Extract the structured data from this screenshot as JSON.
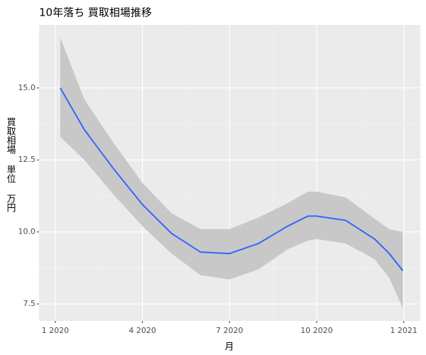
{
  "chart_data": {
    "type": "line",
    "title": "10年落ち 買取相場推移",
    "x_label": "月",
    "y_label": "買取相場 単位 万円",
    "x": [
      0.17,
      1,
      2,
      3,
      4,
      5,
      6,
      7,
      8,
      8.7,
      9,
      10,
      11,
      11.5,
      11.97
    ],
    "values": [
      15.0,
      13.55,
      12.2,
      10.95,
      9.95,
      9.3,
      9.25,
      9.6,
      10.2,
      10.55,
      10.55,
      10.4,
      9.75,
      9.25,
      8.65
    ],
    "lower": [
      13.3,
      12.5,
      11.3,
      10.2,
      9.25,
      8.5,
      8.35,
      8.7,
      9.4,
      9.7,
      9.75,
      9.6,
      9.05,
      8.4,
      7.35
    ],
    "upper": [
      16.75,
      14.6,
      13.1,
      11.7,
      10.65,
      10.1,
      10.1,
      10.5,
      11.0,
      11.4,
      11.4,
      11.2,
      10.45,
      10.1,
      10.0
    ],
    "color": "#3366ff",
    "ribbon_color": "#c8c8c8",
    "xlim": [
      -0.56,
      12.57
    ],
    "xticks": [
      {
        "value": 0,
        "label": "1 2020"
      },
      {
        "value": 3,
        "label": "4 2020"
      },
      {
        "value": 6,
        "label": "7 2020"
      },
      {
        "value": 9,
        "label": "10 2020"
      },
      {
        "value": 12,
        "label": "1 2021"
      }
    ],
    "ylim": [
      6.91,
      17.19
    ],
    "yticks": [
      7.5,
      {
        "value": 10,
        "label": "10.0"
      },
      12.5,
      {
        "value": 15,
        "label": "15.0"
      }
    ],
    "grid": true
  }
}
